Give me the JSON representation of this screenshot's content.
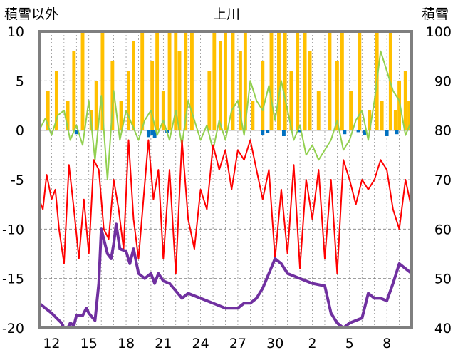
{
  "chart_data": {
    "type": "line",
    "title": "上川",
    "ylabel_left": "積雪以外",
    "ylabel_right": "積雪",
    "ylim_left": [
      -20,
      10
    ],
    "ylim_right": [
      40,
      100
    ],
    "y_ticks_left": [
      "10",
      "5",
      "0",
      "-5",
      "-10",
      "-15",
      "-20"
    ],
    "y_ticks_right": [
      "100",
      "90",
      "80",
      "70",
      "60",
      "50",
      "40"
    ],
    "x_ticks": [
      "12",
      "15",
      "18",
      "21",
      "24",
      "27",
      "30",
      "2",
      "5",
      "8"
    ],
    "x_range_days": [
      0,
      30
    ],
    "grid": true,
    "legend": "none",
    "colors": {
      "temp_max": "#92d050",
      "temp_min": "#ff0000",
      "snow_depth": "#7030a0",
      "sunshine_bar": "#ffc000",
      "precip_bar": "#0070c0",
      "frame": "#7f7f7f",
      "grid": "#808080"
    },
    "series": [
      {
        "axis": "left",
        "kind": "line",
        "color": "#92d050",
        "points": [
          [
            0,
            0
          ],
          [
            0.5,
            1.2
          ],
          [
            1,
            -0.5
          ],
          [
            1.5,
            1.5
          ],
          [
            2,
            2
          ],
          [
            2.5,
            -1
          ],
          [
            3,
            0.5
          ],
          [
            3.5,
            -1.5
          ],
          [
            4,
            3
          ],
          [
            4.5,
            -3
          ],
          [
            5,
            3.5
          ],
          [
            5.5,
            -5
          ],
          [
            6,
            4
          ],
          [
            6.5,
            -1
          ],
          [
            7,
            2
          ],
          [
            7.5,
            0.5
          ],
          [
            8,
            -1
          ],
          [
            8.5,
            1
          ],
          [
            9,
            2
          ],
          [
            9.5,
            -0.5
          ],
          [
            10,
            1
          ],
          [
            10.5,
            -1
          ],
          [
            11,
            2
          ],
          [
            11.5,
            -1.5
          ],
          [
            12,
            3
          ],
          [
            12.5,
            1
          ],
          [
            13,
            -1
          ],
          [
            13.5,
            0.5
          ],
          [
            14,
            -2
          ],
          [
            14.5,
            1
          ],
          [
            15,
            -1
          ],
          [
            15.5,
            2
          ],
          [
            16,
            3
          ],
          [
            16.5,
            -0.5
          ],
          [
            17,
            5
          ],
          [
            17.5,
            3
          ],
          [
            18,
            2
          ],
          [
            18.5,
            4.5
          ],
          [
            19,
            1
          ],
          [
            19.5,
            5
          ],
          [
            20,
            2
          ],
          [
            20.5,
            -1
          ],
          [
            21,
            0.5
          ],
          [
            21.5,
            -2.5
          ],
          [
            22,
            -1.5
          ],
          [
            22.5,
            -3
          ],
          [
            23,
            -2
          ],
          [
            23.5,
            -1
          ],
          [
            24,
            1
          ],
          [
            24.5,
            -2
          ],
          [
            25,
            -1
          ],
          [
            25.5,
            1
          ],
          [
            26,
            2
          ],
          [
            26.5,
            -1
          ],
          [
            27,
            3
          ],
          [
            27.5,
            8
          ],
          [
            28,
            6
          ],
          [
            28.5,
            4
          ],
          [
            29,
            3
          ],
          [
            29.5,
            -0.5
          ],
          [
            30,
            1
          ]
        ]
      },
      {
        "axis": "left",
        "kind": "line",
        "color": "#ff0000",
        "points": [
          [
            0,
            -7
          ],
          [
            0.3,
            -8
          ],
          [
            0.6,
            -4.5
          ],
          [
            1,
            -7
          ],
          [
            1.3,
            -6
          ],
          [
            1.6,
            -10
          ],
          [
            2,
            -13.5
          ],
          [
            2.4,
            -3.5
          ],
          [
            2.8,
            -8
          ],
          [
            3.2,
            -13
          ],
          [
            3.6,
            -7
          ],
          [
            4,
            -12.5
          ],
          [
            4.4,
            -3
          ],
          [
            4.8,
            -4
          ],
          [
            5.2,
            -10
          ],
          [
            5.6,
            -11
          ],
          [
            6,
            -5
          ],
          [
            6.4,
            -8
          ],
          [
            6.8,
            -12
          ],
          [
            7.2,
            -1
          ],
          [
            7.6,
            -9
          ],
          [
            8,
            -13
          ],
          [
            8.4,
            -7
          ],
          [
            8.8,
            -1
          ],
          [
            9.2,
            -7
          ],
          [
            9.6,
            -4
          ],
          [
            10,
            -13
          ],
          [
            10.5,
            -4
          ],
          [
            11,
            -14.5
          ],
          [
            11.5,
            -1
          ],
          [
            12,
            -9
          ],
          [
            12.5,
            -12
          ],
          [
            13,
            -6
          ],
          [
            13.5,
            -8
          ],
          [
            14,
            -1.5
          ],
          [
            14.5,
            -4
          ],
          [
            15,
            -2
          ],
          [
            15.5,
            -6
          ],
          [
            16,
            -2
          ],
          [
            16.5,
            -3
          ],
          [
            17,
            -1
          ],
          [
            17.5,
            -4
          ],
          [
            18,
            -7
          ],
          [
            18.5,
            -4
          ],
          [
            19,
            -13
          ],
          [
            19.5,
            -6
          ],
          [
            20,
            -12.5
          ],
          [
            20.5,
            -3.5
          ],
          [
            21,
            -14
          ],
          [
            21.5,
            -5
          ],
          [
            22,
            -9
          ],
          [
            22.5,
            -4
          ],
          [
            23,
            -13
          ],
          [
            23.5,
            -5
          ],
          [
            24,
            -14.5
          ],
          [
            24.5,
            -3
          ],
          [
            25,
            -5
          ],
          [
            25.5,
            -7.5
          ],
          [
            26,
            -5
          ],
          [
            26.5,
            -6
          ],
          [
            27,
            -5
          ],
          [
            27.5,
            -3
          ],
          [
            28,
            -4
          ],
          [
            28.5,
            -8
          ],
          [
            29,
            -10
          ],
          [
            29.5,
            -5
          ],
          [
            30,
            -8
          ]
        ]
      },
      {
        "axis": "right",
        "kind": "line",
        "color": "#7030a0",
        "points": [
          [
            0,
            45
          ],
          [
            1,
            43
          ],
          [
            1.8,
            41
          ],
          [
            2,
            40
          ],
          [
            2.3,
            40
          ],
          [
            2.5,
            41
          ],
          [
            2.8,
            40.5
          ],
          [
            3,
            42.5
          ],
          [
            3.5,
            42.5
          ],
          [
            3.8,
            44
          ],
          [
            4,
            43
          ],
          [
            4.5,
            41.5
          ],
          [
            4.8,
            49
          ],
          [
            5,
            60
          ],
          [
            5.3,
            57
          ],
          [
            5.5,
            55
          ],
          [
            5.8,
            54
          ],
          [
            6,
            57
          ],
          [
            6.2,
            61
          ],
          [
            6.5,
            56
          ],
          [
            7,
            55.5
          ],
          [
            7.3,
            53
          ],
          [
            7.6,
            56
          ],
          [
            8,
            51
          ],
          [
            8.5,
            50
          ],
          [
            9,
            51
          ],
          [
            9.3,
            49
          ],
          [
            9.6,
            51
          ],
          [
            10,
            49.5
          ],
          [
            10.5,
            49
          ],
          [
            11,
            47.5
          ],
          [
            11.5,
            46
          ],
          [
            12,
            47
          ],
          [
            13,
            46
          ],
          [
            14,
            45
          ],
          [
            15,
            44
          ],
          [
            16,
            44
          ],
          [
            16.5,
            45
          ],
          [
            17,
            45
          ],
          [
            17.5,
            46
          ],
          [
            18,
            48
          ],
          [
            18.5,
            51
          ],
          [
            19,
            54
          ],
          [
            19.5,
            53
          ],
          [
            20,
            51
          ],
          [
            21,
            50
          ],
          [
            22,
            49
          ],
          [
            23,
            48.5
          ],
          [
            23.5,
            43
          ],
          [
            24,
            41
          ],
          [
            24.5,
            40
          ],
          [
            25,
            41
          ],
          [
            26,
            42
          ],
          [
            26.5,
            47
          ],
          [
            27,
            46
          ],
          [
            27.5,
            46
          ],
          [
            28,
            45.5
          ],
          [
            28.5,
            49
          ],
          [
            29,
            53
          ],
          [
            29.5,
            52
          ],
          [
            30,
            51
          ]
        ]
      }
    ],
    "bars": [
      {
        "axis": "left",
        "color": "#ffc000",
        "days": [
          0.7,
          1.4,
          2.3,
          2.8,
          3.5,
          4.2,
          4.6,
          5.1,
          5.9,
          6.6,
          7.2,
          7.6,
          8.3,
          9.1,
          9.5,
          10.0,
          10.5,
          11.0,
          11.3,
          11.8,
          12.3,
          13.7,
          14.1,
          14.6,
          15.0,
          15.6,
          16.2,
          16.6,
          17.2,
          18.0,
          18.7,
          19.3,
          19.8,
          20.3,
          20.8,
          21.4,
          21.8,
          22.5,
          23.4,
          24.0,
          24.4,
          25.1,
          25.8,
          26.6,
          27.2,
          27.6,
          28.3,
          28.7,
          29.0,
          29.5,
          29.8
        ],
        "values": [
          4,
          6,
          3,
          8,
          10,
          2,
          5,
          10,
          7,
          3,
          6,
          9,
          10,
          7,
          10,
          4,
          10,
          10,
          8,
          10,
          10,
          6,
          10,
          9,
          10,
          10,
          8,
          10,
          3,
          7,
          10,
          10,
          10,
          6,
          10,
          10,
          8,
          4,
          10,
          7,
          10,
          4,
          10,
          2,
          10,
          3,
          10,
          2,
          5,
          6,
          3
        ]
      },
      {
        "axis": "left",
        "color": "#0070c0",
        "days": [
          3.0,
          8.8,
          9.1,
          9.3,
          10.3,
          18.0,
          18.4,
          19.7,
          21.0,
          24.6,
          25.7,
          26.2,
          28.0,
          28.8
        ],
        "values": [
          -0.4,
          -0.7,
          -0.5,
          -0.8,
          -0.3,
          -0.5,
          -0.3,
          -0.6,
          -0.2,
          -0.4,
          -0.2,
          -0.5,
          -0.6,
          -0.4
        ]
      }
    ]
  }
}
